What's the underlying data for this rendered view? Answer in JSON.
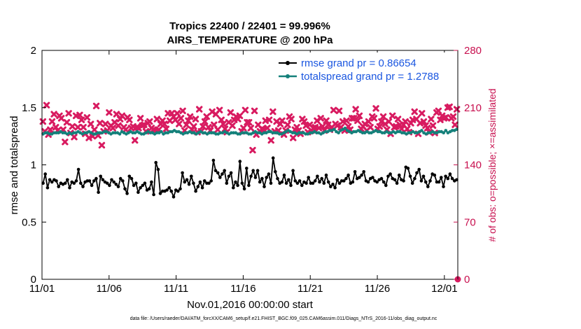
{
  "chart_data": {
    "type": "line",
    "title": "Tropics 22400 / 22401 = 99.996%",
    "subtitle": "AIRS_TEMPERATURE @ 200 hPa",
    "xlabel": "Nov.01,2016 00:00:00 start",
    "ylabel": "rmse and totalspread",
    "ylabel_right": "# of obs: o=possible; ×=assimilated",
    "xlim": [
      0,
      31
    ],
    "ylim": [
      0,
      2
    ],
    "ylim_right": [
      0,
      280
    ],
    "x_ticks": [
      0,
      5,
      10,
      15,
      20,
      25,
      30
    ],
    "x_tick_labels": [
      "11/01",
      "11/06",
      "11/11",
      "11/16",
      "11/21",
      "11/26",
      "12/01"
    ],
    "y_ticks": [
      0,
      0.5,
      1,
      1.5,
      2
    ],
    "y_tick_labels": [
      "0",
      "0.5",
      "1",
      "1.5",
      "2"
    ],
    "y_right_ticks": [
      0,
      70,
      140,
      210,
      280
    ],
    "y_right_tick_labels": [
      "0",
      "70",
      "140",
      "210",
      "280"
    ],
    "grid": false,
    "legend_position": "top-right",
    "series": [
      {
        "name": "rmse grand pr = 0.86654",
        "color": "#000000",
        "marker": "circle",
        "values": [
          0.84,
          0.92,
          0.8,
          0.87,
          0.85,
          0.87,
          0.86,
          0.81,
          0.84,
          0.83,
          0.84,
          0.87,
          0.8,
          0.85,
          0.84,
          0.86,
          0.96,
          0.84,
          0.81,
          0.85,
          0.86,
          0.86,
          0.82,
          0.86,
          0.88,
          0.76,
          0.9,
          0.87,
          0.85,
          0.84,
          0.82,
          0.87,
          0.85,
          0.83,
          0.81,
          0.88,
          0.86,
          0.79,
          0.75,
          0.9,
          0.88,
          0.82,
          0.84,
          0.76,
          0.8,
          0.82,
          0.84,
          0.78,
          0.79,
          0.85,
          0.74,
          1.02,
          0.96,
          0.75,
          0.77,
          0.77,
          0.78,
          0.8,
          0.77,
          0.72,
          0.78,
          0.77,
          0.79,
          0.93,
          0.85,
          0.87,
          0.83,
          0.9,
          0.84,
          0.77,
          0.81,
          0.85,
          0.8,
          0.86,
          0.84,
          0.84,
          0.86,
          1.04,
          0.95,
          0.93,
          0.89,
          0.92,
          0.95,
          0.84,
          0.9,
          0.93,
          0.8,
          0.85,
          0.82,
          1.03,
          0.84,
          0.79,
          0.97,
          0.82,
          0.9,
          0.95,
          0.89,
          0.95,
          0.85,
          0.88,
          0.81,
          0.89,
          0.92,
          0.84,
          1.06,
          0.94,
          0.88,
          0.84,
          0.85,
          0.91,
          0.84,
          0.87,
          0.82,
          0.95,
          0.86,
          0.84,
          0.86,
          0.82,
          0.85,
          0.84,
          0.89,
          0.84,
          0.84,
          0.86,
          0.9,
          0.85,
          0.88,
          0.84,
          0.91,
          0.85,
          0.81,
          0.83,
          0.8,
          0.87,
          0.84,
          0.86,
          0.86,
          0.88,
          0.91,
          0.84,
          0.85,
          0.94,
          0.88,
          0.89,
          0.91,
          0.94,
          0.86,
          0.85,
          0.88,
          0.89,
          0.86,
          0.85,
          0.87,
          0.88,
          0.85,
          0.82,
          0.9,
          0.92,
          0.88,
          0.87,
          0.84,
          0.91,
          0.87,
          0.86,
          0.98,
          0.97,
          0.9,
          0.84,
          0.88,
          0.93,
          0.96,
          0.86,
          0.9,
          0.85,
          0.81,
          0.86,
          0.92,
          0.91,
          0.85,
          0.85,
          0.89,
          0.81,
          0.9,
          0.88,
          0.92,
          0.88,
          0.86,
          0.87
        ]
      },
      {
        "name": "totalspread grand pr = 1.2788",
        "color": "#14807a",
        "marker": "circle",
        "values": [
          1.27,
          1.28,
          1.28,
          1.27,
          1.27,
          1.28,
          1.28,
          1.28,
          1.29,
          1.28,
          1.28,
          1.27,
          1.28,
          1.27,
          1.28,
          1.28,
          1.29,
          1.28,
          1.27,
          1.28,
          1.28,
          1.29,
          1.28,
          1.27,
          1.27,
          1.28,
          1.28,
          1.28,
          1.29,
          1.29,
          1.28,
          1.27,
          1.28,
          1.28,
          1.28,
          1.27,
          1.29,
          1.28,
          1.27,
          1.28,
          1.29,
          1.28,
          1.28,
          1.29,
          1.28,
          1.27,
          1.27,
          1.28,
          1.29,
          1.28,
          1.28,
          1.27,
          1.28,
          1.28,
          1.29,
          1.27,
          1.28,
          1.28,
          1.29,
          1.29,
          1.3,
          1.29,
          1.29,
          1.28,
          1.27,
          1.28,
          1.28,
          1.29,
          1.28,
          1.28,
          1.27,
          1.28,
          1.29,
          1.28,
          1.28,
          1.27,
          1.28,
          1.28,
          1.28,
          1.27,
          1.27,
          1.28,
          1.28,
          1.29,
          1.28,
          1.27,
          1.28,
          1.28,
          1.28,
          1.27,
          1.27,
          1.28,
          1.28,
          1.28,
          1.27,
          1.27,
          1.28,
          1.29,
          1.28,
          1.28,
          1.27,
          1.28,
          1.28,
          1.29,
          1.29,
          1.28,
          1.28,
          1.28,
          1.27,
          1.27,
          1.28,
          1.29,
          1.3,
          1.29,
          1.28,
          1.28,
          1.27,
          1.28,
          1.28,
          1.28,
          1.27,
          1.27,
          1.28,
          1.28,
          1.29,
          1.28,
          1.28,
          1.27,
          1.28,
          1.29,
          1.29,
          1.3,
          1.3,
          1.31,
          1.29,
          1.28,
          1.3,
          1.31,
          1.32,
          1.3,
          1.29,
          1.28,
          1.29,
          1.29,
          1.3,
          1.29,
          1.28,
          1.28,
          1.29,
          1.28,
          1.28,
          1.29,
          1.3,
          1.29,
          1.29,
          1.28,
          1.28,
          1.29,
          1.28,
          1.28,
          1.29,
          1.28,
          1.29,
          1.29,
          1.28,
          1.28,
          1.27,
          1.28,
          1.28,
          1.29,
          1.28,
          1.28,
          1.29,
          1.3,
          1.28,
          1.27,
          1.28,
          1.28,
          1.29,
          1.28,
          1.28,
          1.29,
          1.29,
          1.28,
          1.3,
          1.28,
          1.29,
          1.3,
          1.3,
          1.31
        ]
      }
    ],
    "obs_counts": {
      "name": "# of obs assimilated",
      "color": "#d81b60",
      "marker": "x",
      "axis": "right",
      "values": [
        193,
        181,
        213,
        177,
        183,
        193,
        202,
        186,
        182,
        200,
        197,
        183,
        168,
        192,
        203,
        179,
        187,
        174,
        200,
        186,
        201,
        195,
        186,
        178,
        198,
        173,
        190,
        175,
        183,
        212,
        176,
        191,
        164,
        181,
        190,
        182,
        204,
        188,
        185,
        192,
        202,
        188,
        196,
        200,
        186,
        183,
        198,
        195,
        185,
        187,
        170,
        186,
        185,
        197,
        188,
        189,
        181,
        191,
        193,
        185,
        183,
        182,
        196,
        183,
        190,
        194,
        190,
        184,
        203,
        194,
        203,
        199,
        195,
        203,
        190,
        197,
        206,
        182,
        189,
        194,
        199,
        183,
        187,
        196,
        180,
        208,
        181,
        187,
        193,
        199,
        186,
        182,
        205,
        189,
        202,
        183,
        207,
        195,
        190,
        184,
        180,
        192,
        204,
        188,
        195,
        199,
        196,
        200,
        181,
        185,
        207,
        192,
        192,
        185,
        158,
        206,
        177,
        189,
        181,
        184,
        183,
        194,
        185,
        195,
        170,
        205,
        181,
        193,
        182,
        190,
        194,
        177,
        182,
        189,
        199,
        196,
        173,
        183,
        186,
        182,
        178,
        196,
        193,
        188,
        180,
        189,
        182,
        185,
        186,
        194,
        185,
        197,
        187,
        182,
        194,
        189,
        183,
        186,
        207,
        190,
        188,
        206,
        186,
        193,
        182,
        194,
        187,
        183,
        197,
        197,
        208,
        194,
        200,
        184,
        187,
        190,
        182,
        193,
        186,
        199,
        197,
        209,
        184,
        187,
        193,
        199,
        190,
        183,
        193,
        178,
        200,
        186,
        187,
        196,
        189,
        184,
        189,
        193,
        184,
        180,
        191,
        195,
        205,
        196,
        178,
        191,
        203,
        193,
        188,
        185,
        180,
        196,
        188,
        179,
        204,
        206,
        195,
        200,
        197,
        198,
        210,
        211,
        197,
        199,
        189,
        208
      ]
    },
    "footer": "data file: /Users/raeder/DAI/ATM_forcXX/CAM6_setup/f.e21.FHIST_BGC.f09_025.CAM6assim.011/Diags_NTrS_2016-11/obs_diag_output.nc"
  }
}
